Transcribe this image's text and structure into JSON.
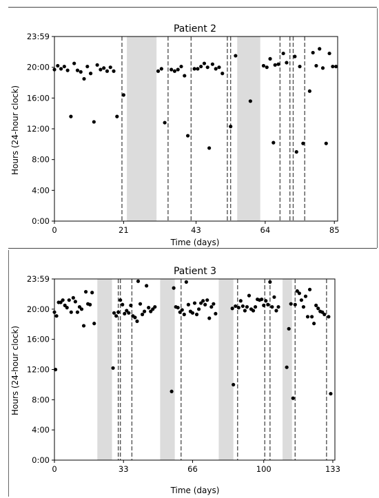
{
  "chart_data": [
    {
      "type": "scatter",
      "title": "Patient 2",
      "xlabel": "Time (days)",
      "ylabel": "Hours (24-hour clock)",
      "xlim": [
        0,
        86
      ],
      "ylim": [
        0,
        24
      ],
      "xticks": [
        0,
        21,
        43,
        64,
        85
      ],
      "xtick_labels": [
        "0",
        "21",
        "43",
        "64",
        "85"
      ],
      "yticks": [
        0,
        4,
        8,
        12,
        16,
        20,
        24
      ],
      "ytick_labels": [
        "0:00",
        "4:00",
        "8:00",
        "12:00",
        "16:00",
        "20:00",
        "23:59"
      ],
      "shaded_periods": [
        [
          22,
          31
        ],
        [
          55.5,
          62.5
        ]
      ],
      "dashed_lines": [
        20.5,
        34.5,
        41.5,
        52.5,
        53.5,
        68.5,
        71.5,
        72.5,
        76
      ],
      "points": [
        [
          0,
          19.7
        ],
        [
          1,
          20.2
        ],
        [
          2,
          19.8
        ],
        [
          3,
          20.1
        ],
        [
          4,
          19.6
        ],
        [
          5,
          13.6
        ],
        [
          6,
          20.5
        ],
        [
          7,
          19.6
        ],
        [
          8,
          19.4
        ],
        [
          9,
          18.5
        ],
        [
          10,
          20.1
        ],
        [
          11,
          19.2
        ],
        [
          12,
          12.9
        ],
        [
          13,
          20.3
        ],
        [
          14,
          19.7
        ],
        [
          15,
          19.9
        ],
        [
          16,
          19.5
        ],
        [
          17,
          20.0
        ],
        [
          18,
          19.5
        ],
        [
          19,
          13.6
        ],
        [
          21,
          16.4
        ],
        [
          31.5,
          19.5
        ],
        [
          32.5,
          19.8
        ],
        [
          33.5,
          12.8
        ],
        [
          35.5,
          19.7
        ],
        [
          36.5,
          19.5
        ],
        [
          37.5,
          19.7
        ],
        [
          38.5,
          20.1
        ],
        [
          39.5,
          18.9
        ],
        [
          40.5,
          11.1
        ],
        [
          42.5,
          19.8
        ],
        [
          43.5,
          19.8
        ],
        [
          44.5,
          20.1
        ],
        [
          45.5,
          20.5
        ],
        [
          46.5,
          20.0
        ],
        [
          47,
          9.5
        ],
        [
          48,
          20.4
        ],
        [
          49,
          19.8
        ],
        [
          50,
          20.0
        ],
        [
          51,
          19.2
        ],
        [
          53.5,
          12.3
        ],
        [
          55,
          21.5
        ],
        [
          59.5,
          15.6
        ],
        [
          63.5,
          20.2
        ],
        [
          64.5,
          20.0
        ],
        [
          65.5,
          21.1
        ],
        [
          66.5,
          10.2
        ],
        [
          67,
          20.3
        ],
        [
          68,
          20.4
        ],
        [
          69.5,
          21.8
        ],
        [
          70.5,
          20.6
        ],
        [
          73,
          21.4
        ],
        [
          73.5,
          9.0
        ],
        [
          74.5,
          20.1
        ],
        [
          75.5,
          10.1
        ],
        [
          77.5,
          16.9
        ],
        [
          78.5,
          21.9
        ],
        [
          79.5,
          20.2
        ],
        [
          80.5,
          22.4
        ],
        [
          81.5,
          19.9
        ],
        [
          82.5,
          10.1
        ],
        [
          83.5,
          21.8
        ],
        [
          84.5,
          20.1
        ],
        [
          85.5,
          20.1
        ]
      ]
    },
    {
      "type": "scatter",
      "title": "Patient 3",
      "xlabel": "Time (days)",
      "ylabel": "Hours (24-hour clock)",
      "xlim": [
        0,
        134
      ],
      "ylim": [
        0,
        24
      ],
      "xticks": [
        0,
        33,
        66,
        100,
        133
      ],
      "xtick_labels": [
        "0",
        "33",
        "66",
        "100",
        "133"
      ],
      "yticks": [
        0,
        4,
        8,
        12,
        16,
        20,
        24
      ],
      "ytick_labels": [
        "0:00",
        "4:00",
        "8:00",
        "12:00",
        "16:00",
        "20:00",
        "23:59"
      ],
      "shaded_periods": [
        [
          20.5,
          27.5
        ],
        [
          50.5,
          57.5
        ],
        [
          78.5,
          85.5
        ],
        [
          109,
          113.5
        ]
      ],
      "dashed_lines": [
        30.5,
        31.5,
        37,
        60.5,
        87.5,
        100.5,
        103,
        115,
        130
      ],
      "points": [
        [
          0,
          19.6
        ],
        [
          0.5,
          12.0
        ],
        [
          1,
          19.1
        ],
        [
          2,
          20.9
        ],
        [
          3,
          20.9
        ],
        [
          4,
          21.2
        ],
        [
          5,
          20.5
        ],
        [
          6,
          20.2
        ],
        [
          7,
          21.2
        ],
        [
          8,
          19.6
        ],
        [
          9,
          21.5
        ],
        [
          10,
          21.0
        ],
        [
          11,
          19.6
        ],
        [
          12,
          20.3
        ],
        [
          13,
          20.0
        ],
        [
          14,
          17.8
        ],
        [
          15,
          22.3
        ],
        [
          16,
          20.7
        ],
        [
          17,
          20.6
        ],
        [
          18,
          22.2
        ],
        [
          19,
          18.1
        ],
        [
          28,
          12.2
        ],
        [
          28.5,
          19.5
        ],
        [
          29.5,
          19.1
        ],
        [
          30.5,
          19.6
        ],
        [
          31.5,
          21.2
        ],
        [
          32.5,
          20.6
        ],
        [
          33.5,
          19.4
        ],
        [
          34.5,
          19.8
        ],
        [
          35.5,
          19.5
        ],
        [
          36.5,
          20.5
        ],
        [
          37.5,
          19.1
        ],
        [
          38.5,
          18.9
        ],
        [
          39.5,
          18.4
        ],
        [
          40,
          23.7
        ],
        [
          41,
          20.7
        ],
        [
          42,
          19.3
        ],
        [
          43,
          19.7
        ],
        [
          44,
          23.1
        ],
        [
          45,
          20.2
        ],
        [
          46,
          19.7
        ],
        [
          47,
          20.0
        ],
        [
          48,
          20.3
        ],
        [
          56,
          9.1
        ],
        [
          57,
          22.8
        ],
        [
          58,
          20.3
        ],
        [
          59,
          20.2
        ],
        [
          60,
          19.6
        ],
        [
          61,
          19.9
        ],
        [
          62,
          19.3
        ],
        [
          63,
          23.6
        ],
        [
          64,
          20.6
        ],
        [
          65,
          19.7
        ],
        [
          66,
          19.5
        ],
        [
          67,
          20.8
        ],
        [
          68,
          19.3
        ],
        [
          69,
          20.0
        ],
        [
          70,
          20.8
        ],
        [
          71,
          21.1
        ],
        [
          72,
          20.6
        ],
        [
          73,
          21.2
        ],
        [
          74,
          18.8
        ],
        [
          75,
          20.3
        ],
        [
          76,
          20.7
        ],
        [
          77,
          19.4
        ],
        [
          85,
          20.1
        ],
        [
          85.5,
          10.0
        ],
        [
          86.5,
          20.4
        ],
        [
          88,
          20.2
        ],
        [
          89,
          21.1
        ],
        [
          90,
          20.4
        ],
        [
          91,
          19.8
        ],
        [
          92,
          20.3
        ],
        [
          93,
          21.8
        ],
        [
          94,
          20.0
        ],
        [
          95,
          19.8
        ],
        [
          96,
          20.3
        ],
        [
          97,
          21.3
        ],
        [
          98,
          21.2
        ],
        [
          99,
          21.3
        ],
        [
          100,
          20.5
        ],
        [
          101,
          21.1
        ],
        [
          102,
          20.6
        ],
        [
          103,
          23.6
        ],
        [
          104,
          20.3
        ],
        [
          105,
          21.6
        ],
        [
          106,
          19.8
        ],
        [
          107,
          20.3
        ],
        [
          111,
          12.3
        ],
        [
          112,
          17.4
        ],
        [
          113,
          20.7
        ],
        [
          114,
          8.2
        ],
        [
          115,
          20.6
        ],
        [
          116,
          22.4
        ],
        [
          117,
          22.1
        ],
        [
          118,
          21.2
        ],
        [
          119,
          20.3
        ],
        [
          120,
          21.7
        ],
        [
          121,
          19.0
        ],
        [
          122,
          22.6
        ],
        [
          123,
          19.0
        ],
        [
          124,
          18.1
        ],
        [
          125,
          20.5
        ],
        [
          126,
          20.1
        ],
        [
          127,
          19.7
        ],
        [
          128,
          19.6
        ],
        [
          129,
          19.3
        ],
        [
          131,
          19.0
        ],
        [
          132,
          8.8
        ]
      ]
    }
  ]
}
